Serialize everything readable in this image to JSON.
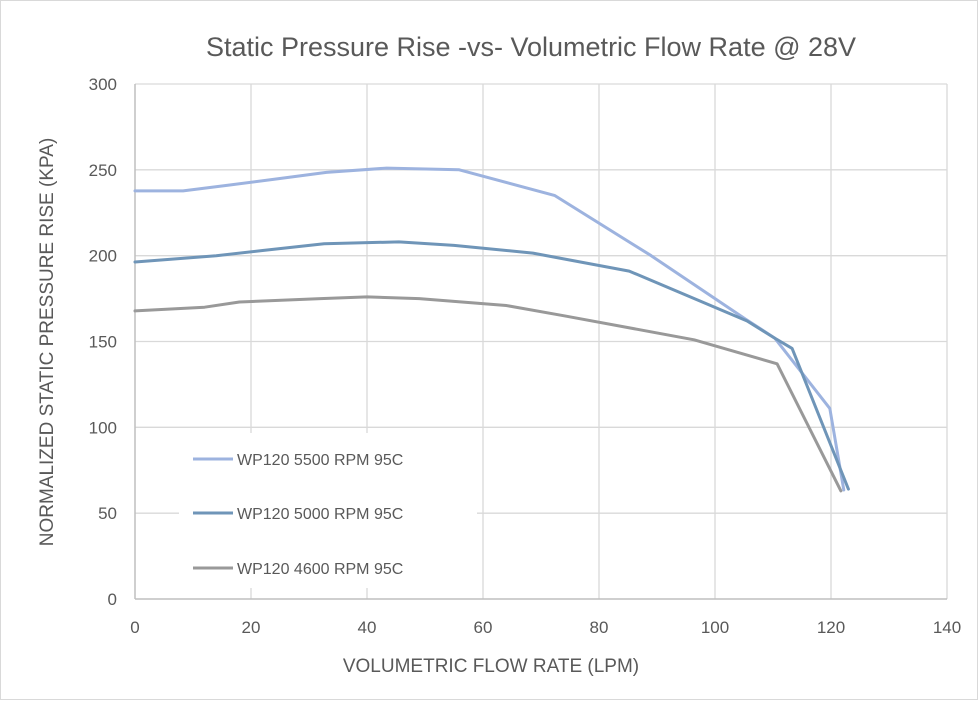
{
  "chart_data": {
    "type": "line",
    "title": "Static Pressure Rise -vs- Volumetric Flow Rate @ 28V",
    "xlabel": "VOLUMETRIC FLOW RATE (LPM)",
    "ylabel": "NORMALIZED STATIC PRESSURE RISE (KPA)",
    "xlim": [
      0,
      140
    ],
    "ylim": [
      0,
      300
    ],
    "xticks": [
      0,
      20,
      40,
      60,
      80,
      100,
      120,
      140
    ],
    "yticks": [
      0,
      50,
      100,
      150,
      200,
      250,
      300
    ],
    "grid": true,
    "legend_position": "lower-left",
    "series": [
      {
        "name": "WP120 5500 RPM 95C",
        "color": "#9db3df",
        "x": [
          0,
          8.3,
          16,
          24,
          33,
          43.4,
          55.9,
          72.4,
          89,
          105.3,
          110.3,
          119.8,
          122.2
        ],
        "y": [
          237.7,
          237.7,
          241,
          244.5,
          248.5,
          251,
          250,
          235,
          200,
          163,
          152,
          111,
          63.5
        ]
      },
      {
        "name": "WP120 5000 RPM 95C",
        "color": "#6f95b8",
        "x": [
          0,
          14,
          22,
          32.6,
          45.5,
          55,
          68.6,
          85.2,
          105.5,
          110.3,
          113.3,
          123
        ],
        "y": [
          196.3,
          200,
          203,
          207,
          208,
          206,
          201.5,
          191,
          162,
          152,
          146,
          64
        ]
      },
      {
        "name": "WP120 4600 RPM 95C",
        "color": "#999999",
        "x": [
          0,
          12,
          18,
          32,
          40,
          49,
          64,
          74,
          96.4,
          110.7,
          121.7
        ],
        "y": [
          167.8,
          170,
          173,
          175,
          176,
          175,
          171,
          165,
          151,
          137,
          63
        ]
      }
    ]
  }
}
